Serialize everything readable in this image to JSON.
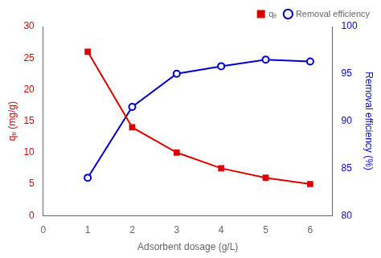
{
  "chart_data": {
    "type": "line",
    "xlabel": "Adsorbent dosage (g/L)",
    "ylabel": "qₑ (mg/g)",
    "y2label": "Removal efficiency (%)",
    "x": [
      1,
      2,
      3,
      4,
      5,
      6
    ],
    "series": [
      {
        "name": "qₑ",
        "color": "#dd0000",
        "marker": "square",
        "values": [
          26.0,
          14.0,
          10.0,
          7.5,
          6.0,
          5.0
        ]
      },
      {
        "name": "Removal efficiency",
        "color": "#0000cc",
        "marker": "circle",
        "axis": "y2",
        "values": [
          84.0,
          91.5,
          95.0,
          95.8,
          96.5,
          96.3
        ]
      }
    ],
    "xlim": [
      0,
      6.5
    ],
    "xticks": [
      0,
      1,
      2,
      3,
      4,
      5,
      6
    ],
    "ylim": [
      0,
      30
    ],
    "yticks": [
      0,
      5,
      10,
      15,
      20,
      25,
      30
    ],
    "y2lim": [
      80,
      100
    ],
    "y2ticks": [
      80,
      85,
      90,
      95,
      100
    ],
    "grid": false,
    "legend": "upper right"
  }
}
